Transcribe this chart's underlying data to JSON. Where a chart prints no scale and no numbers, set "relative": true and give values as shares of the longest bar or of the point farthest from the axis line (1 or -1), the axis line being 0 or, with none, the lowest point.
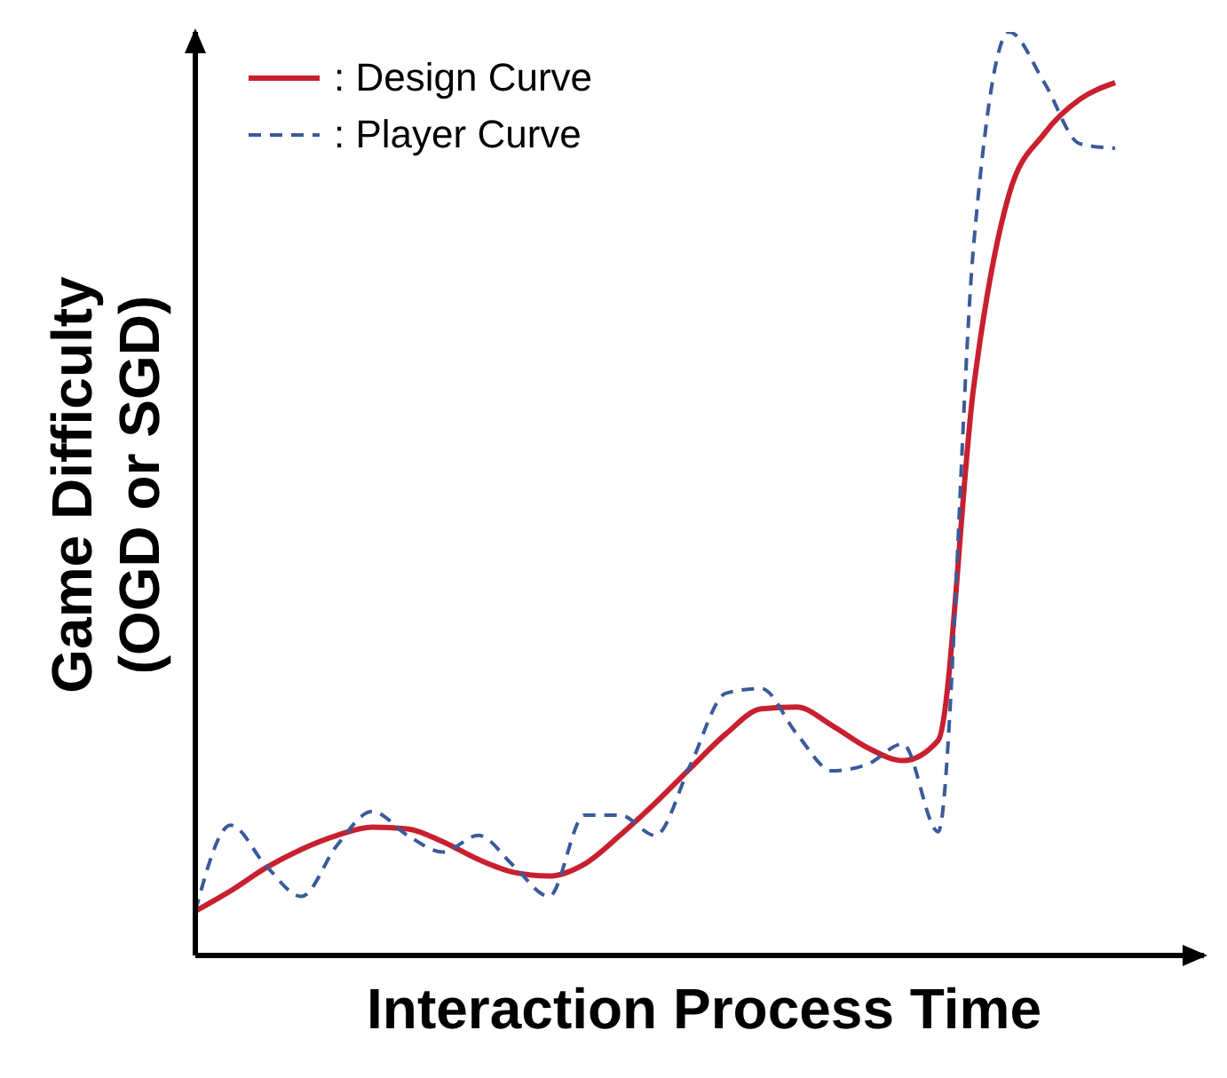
{
  "chart_data": {
    "type": "line",
    "relative": true,
    "xlabel": "Interaction Process Time",
    "ylabel": "Game Difficulty\n(OGD or SGD)",
    "legend": "top left",
    "categories": [
      null,
      null,
      null,
      null,
      null,
      null,
      null,
      null,
      null,
      null,
      null,
      null,
      null,
      null,
      null,
      null,
      null,
      null,
      null,
      null,
      null,
      null,
      null,
      null,
      null,
      null,
      null
    ],
    "series": [
      {
        "name": ": Design Curve",
        "color": "#c8202f",
        "line_style": "solid",
        "values": [
          0.048,
          0.07,
          0.095,
          0.115,
          0.13,
          0.139,
          0.137,
          0.123,
          0.104,
          0.09,
          0.086,
          0.099,
          0.13,
          0.165,
          0.203,
          0.24,
          0.267,
          0.269,
          0.249,
          0.225,
          0.211,
          0.233,
          0.615,
          0.824,
          0.89,
          0.927,
          0.945
        ]
      },
      {
        "name": ": Player Curve",
        "color": "#3a5a9a",
        "line_style": "dashed",
        "values": [
          0.048,
          0.141,
          0.097,
          0.064,
          0.119,
          0.156,
          0.13,
          0.112,
          0.13,
          0.097,
          0.064,
          0.152,
          0.152,
          0.13,
          0.207,
          0.284,
          0.289,
          0.24,
          0.2,
          0.207,
          0.229,
          0.134,
          0.769,
          1.0,
          0.945,
          0.879,
          0.874
        ]
      }
    ]
  }
}
